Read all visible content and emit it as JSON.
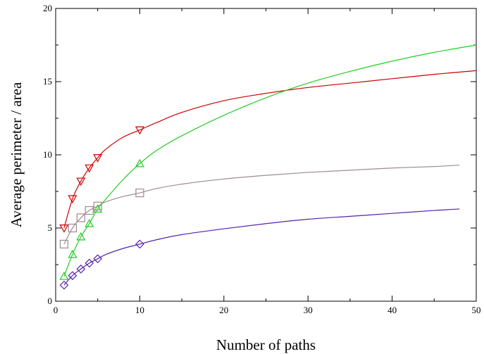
{
  "chart_data": {
    "type": "scatter",
    "title": "",
    "xlabel": "Number of paths",
    "ylabel": "Average perimeter / area",
    "xlim": [
      0,
      50
    ],
    "ylim": [
      0,
      20
    ],
    "x_ticks": [
      0,
      10,
      20,
      30,
      40,
      50
    ],
    "y_ticks": [
      0,
      5,
      10,
      15,
      20
    ],
    "grid": false,
    "legend": "none",
    "series": [
      {
        "color": "#cc0000",
        "marker": "triangle-down",
        "points": {
          "x": [
            1,
            2,
            3,
            4,
            5,
            10
          ],
          "y": [
            5.0,
            7.0,
            8.2,
            9.1,
            9.8,
            11.7
          ]
        },
        "fit": {
          "x": [
            1,
            2,
            3,
            4,
            5,
            6,
            8,
            10,
            12,
            15,
            20,
            25,
            30,
            35,
            40,
            45,
            50
          ],
          "y": [
            5.0,
            7.0,
            8.2,
            9.1,
            9.8,
            10.4,
            11.2,
            11.7,
            12.2,
            12.9,
            13.7,
            14.2,
            14.6,
            14.9,
            15.2,
            15.5,
            15.75
          ]
        }
      },
      {
        "color": "#22cc22",
        "marker": "triangle-up",
        "points": {
          "x": [
            1,
            2,
            3,
            4,
            5,
            10
          ],
          "y": [
            1.7,
            3.2,
            4.4,
            5.3,
            6.3,
            9.4
          ]
        },
        "fit": {
          "x": [
            1,
            2,
            3,
            4,
            5,
            6,
            8,
            10,
            12,
            15,
            20,
            25,
            30,
            35,
            40,
            45,
            50
          ],
          "y": [
            1.7,
            3.2,
            4.4,
            5.3,
            6.3,
            7.0,
            8.3,
            9.4,
            10.3,
            11.3,
            12.7,
            13.9,
            14.9,
            15.7,
            16.4,
            17.0,
            17.5
          ]
        }
      },
      {
        "color": "#a08a90",
        "marker": "square",
        "points": {
          "x": [
            1,
            2,
            3,
            4,
            5,
            10
          ],
          "y": [
            3.9,
            5.0,
            5.7,
            6.2,
            6.5,
            7.4
          ]
        },
        "fit": {
          "x": [
            1,
            2,
            3,
            4,
            5,
            6,
            8,
            10,
            12,
            15,
            20,
            25,
            30,
            35,
            40,
            45,
            48
          ],
          "y": [
            3.9,
            5.0,
            5.7,
            6.2,
            6.5,
            6.8,
            7.15,
            7.4,
            7.7,
            8.0,
            8.35,
            8.6,
            8.8,
            8.95,
            9.1,
            9.2,
            9.3
          ]
        }
      },
      {
        "color": "#5522aa",
        "marker": "diamond",
        "points": {
          "x": [
            1,
            2,
            3,
            4,
            5,
            10
          ],
          "y": [
            1.1,
            1.75,
            2.2,
            2.6,
            2.9,
            3.9
          ]
        },
        "fit": {
          "x": [
            1,
            2,
            3,
            4,
            5,
            6,
            8,
            10,
            12,
            15,
            20,
            25,
            30,
            35,
            40,
            45,
            48
          ],
          "y": [
            1.1,
            1.75,
            2.2,
            2.6,
            2.9,
            3.2,
            3.6,
            3.9,
            4.2,
            4.55,
            4.95,
            5.3,
            5.6,
            5.8,
            6.0,
            6.2,
            6.3
          ]
        }
      }
    ]
  }
}
